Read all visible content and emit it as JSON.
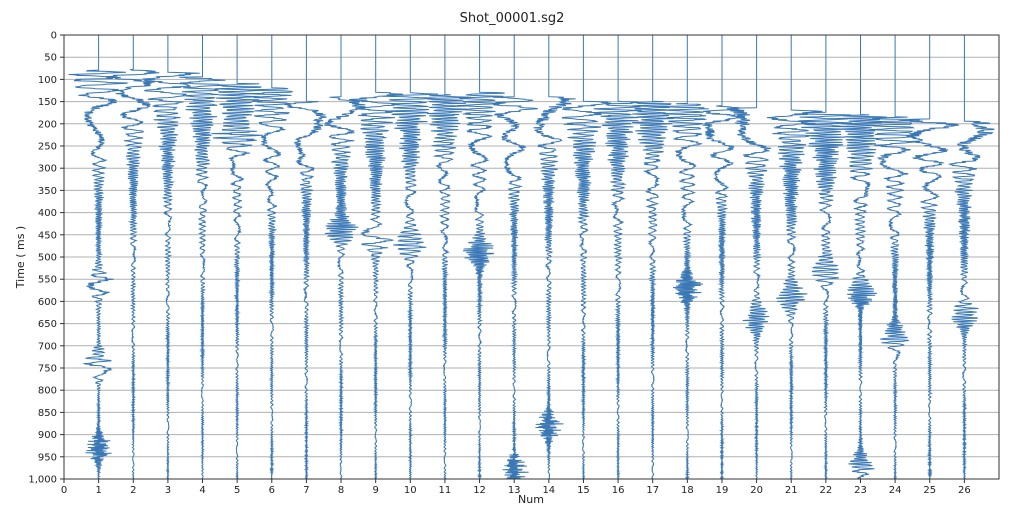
{
  "chart_data": {
    "type": "line",
    "title": "Shot_00001.sg2",
    "xlabel": "Num",
    "ylabel": "Time ( ms )",
    "xlim": [
      0,
      27
    ],
    "ylim": [
      1000,
      0
    ],
    "x_ticks": [
      0,
      1,
      2,
      3,
      4,
      5,
      6,
      7,
      8,
      9,
      10,
      11,
      12,
      13,
      14,
      15,
      16,
      17,
      18,
      19,
      20,
      21,
      22,
      23,
      24,
      25,
      26
    ],
    "y_ticks": [
      0,
      50,
      100,
      150,
      200,
      250,
      300,
      350,
      400,
      450,
      500,
      550,
      600,
      650,
      700,
      750,
      800,
      850,
      900,
      950,
      1000
    ],
    "y_tick_labels": [
      "0",
      "50",
      "100",
      "150",
      "200",
      "250",
      "300",
      "350",
      "400",
      "450",
      "500",
      "550",
      "600",
      "650",
      "700",
      "750",
      "800",
      "850",
      "900",
      "950",
      "1,000"
    ],
    "grid": "horizontal",
    "trace_color": "#3a78b5",
    "traces": [
      {
        "trace": 1,
        "first_break_ms": 80,
        "amplitude": 1.0,
        "late_energy_ms": [
          560,
          740,
          930
        ]
      },
      {
        "trace": 2,
        "first_break_ms": 78,
        "amplitude": 0.9,
        "late_energy_ms": []
      },
      {
        "trace": 3,
        "first_break_ms": 85,
        "amplitude": 0.9,
        "late_energy_ms": []
      },
      {
        "trace": 4,
        "first_break_ms": 95,
        "amplitude": 0.8,
        "late_energy_ms": []
      },
      {
        "trace": 5,
        "first_break_ms": 110,
        "amplitude": 0.8,
        "late_energy_ms": [
          230
        ]
      },
      {
        "trace": 6,
        "first_break_ms": 120,
        "amplitude": 0.8,
        "late_energy_ms": []
      },
      {
        "trace": 7,
        "first_break_ms": 150,
        "amplitude": 0.7,
        "late_energy_ms": []
      },
      {
        "trace": 8,
        "first_break_ms": 140,
        "amplitude": 0.8,
        "late_energy_ms": [
          440
        ]
      },
      {
        "trace": 9,
        "first_break_ms": 130,
        "amplitude": 0.8,
        "late_energy_ms": [
          460
        ]
      },
      {
        "trace": 10,
        "first_break_ms": 130,
        "amplitude": 0.8,
        "late_energy_ms": [
          470
        ]
      },
      {
        "trace": 11,
        "first_break_ms": 135,
        "amplitude": 0.8,
        "late_energy_ms": []
      },
      {
        "trace": 12,
        "first_break_ms": 130,
        "amplitude": 0.8,
        "late_energy_ms": [
          490
        ]
      },
      {
        "trace": 13,
        "first_break_ms": 140,
        "amplitude": 0.8,
        "late_energy_ms": [
          980
        ]
      },
      {
        "trace": 14,
        "first_break_ms": 140,
        "amplitude": 0.8,
        "late_energy_ms": [
          880
        ]
      },
      {
        "trace": 15,
        "first_break_ms": 150,
        "amplitude": 0.8,
        "late_energy_ms": []
      },
      {
        "trace": 16,
        "first_break_ms": 150,
        "amplitude": 0.8,
        "late_energy_ms": []
      },
      {
        "trace": 17,
        "first_break_ms": 150,
        "amplitude": 0.8,
        "late_energy_ms": []
      },
      {
        "trace": 18,
        "first_break_ms": 155,
        "amplitude": 0.8,
        "late_energy_ms": [
          570
        ]
      },
      {
        "trace": 19,
        "first_break_ms": 160,
        "amplitude": 0.8,
        "late_energy_ms": []
      },
      {
        "trace": 20,
        "first_break_ms": 165,
        "amplitude": 0.9,
        "late_energy_ms": [
          640
        ]
      },
      {
        "trace": 21,
        "first_break_ms": 170,
        "amplitude": 0.9,
        "late_energy_ms": [
          590
        ]
      },
      {
        "trace": 22,
        "first_break_ms": 175,
        "amplitude": 0.9,
        "late_energy_ms": [
          530
        ]
      },
      {
        "trace": 23,
        "first_break_ms": 180,
        "amplitude": 0.9,
        "late_energy_ms": [
          580,
          970
        ]
      },
      {
        "trace": 24,
        "first_break_ms": 185,
        "amplitude": 1.0,
        "late_energy_ms": [
          680
        ]
      },
      {
        "trace": 25,
        "first_break_ms": 190,
        "amplitude": 1.0,
        "late_energy_ms": []
      },
      {
        "trace": 26,
        "first_break_ms": 195,
        "amplitude": 1.0,
        "late_energy_ms": [
          630
        ]
      }
    ]
  }
}
